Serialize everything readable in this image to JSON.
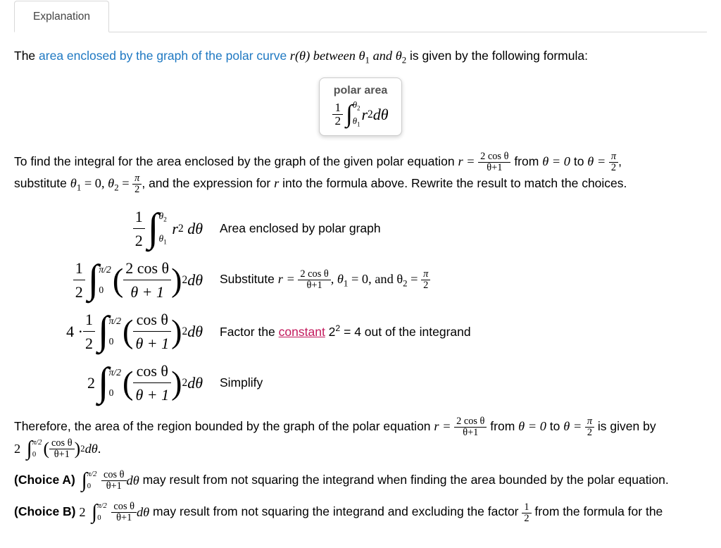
{
  "tab": {
    "label": "Explanation"
  },
  "intro": {
    "prefix": "The ",
    "link_text": "area enclosed by the graph of the polar curve",
    "after_link": " r(θ) between θ",
    "sub1": "1",
    "mid1": " and θ",
    "sub2": "2",
    "suffix": " is given by the following formula:"
  },
  "formula_caption": "polar area",
  "para2": {
    "t1": "To find the integral for the area enclosed by the graph of the given polar equation ",
    "r_eq": "r = ",
    "from": " from ",
    "theta0": "θ = 0",
    "to": " to ",
    "thetapi2_a": "θ = ",
    "comma": ",",
    "t2": "substitute ",
    "s1": "θ",
    "s1sub": "1",
    "s1eq": " = 0, ",
    "s2": "θ",
    "s2sub": "2",
    "s2eq": " = ",
    "t3": ", and the expression for ",
    "rvar": "r",
    "t4": " into the formula above.  Rewrite the result to match the choices."
  },
  "steps": [
    {
      "explain": "Area enclosed by polar graph"
    },
    {
      "explain_pre": "Substitute ",
      "explain_r": "r = ",
      "explain_mid": ", θ",
      "sub1": "1",
      "eq1": " = 0, and θ",
      "sub2": "2",
      "eq2": " = "
    },
    {
      "explain_pre": "Factor the ",
      "link": "constant",
      "explain_post": " 2",
      "sqexp": "2",
      "explain_tail": " = 4 out of the integrand"
    },
    {
      "explain": "Simplify"
    }
  ],
  "therefore": {
    "t1": "Therefore, the area of the region bounded by the graph of the polar equation ",
    "r_eq": "r = ",
    "from": " from ",
    "theta0": "θ = 0",
    "to": " to ",
    "thetapi2": "θ = ",
    "t2": " is given by"
  },
  "choiceA": {
    "label": "(Choice A) ",
    "tail": " may result from not squaring the integrand when finding the area bounded by the polar equation."
  },
  "choiceB": {
    "label": "(Choice B) ",
    "mid": " may result from not squaring the integrand and excluding the factor ",
    "tail": " from the formula for the"
  },
  "frac": {
    "half_num": "1",
    "half_den": "2",
    "pi2_num": "π",
    "pi2_den": "2",
    "r_num": "2 cos θ",
    "r_den": "θ+1",
    "cos_num": "cos θ",
    "cos_den": "θ + 1",
    "cos_num_tight": "cos θ",
    "cos_den_tight": "θ+1"
  },
  "sym": {
    "r2dth": "r",
    "sq": "2",
    "dth": " dθ",
    "four_dot": "4 · ",
    "two": "2",
    "pi_over_2": "π/2",
    "zero": "0",
    "theta1": "θ",
    "theta2": "θ",
    "t1s": "1",
    "t2s": "2",
    "period": "."
  },
  "colors": {
    "link": "#1e78c2",
    "magenta": "#c2185b"
  }
}
